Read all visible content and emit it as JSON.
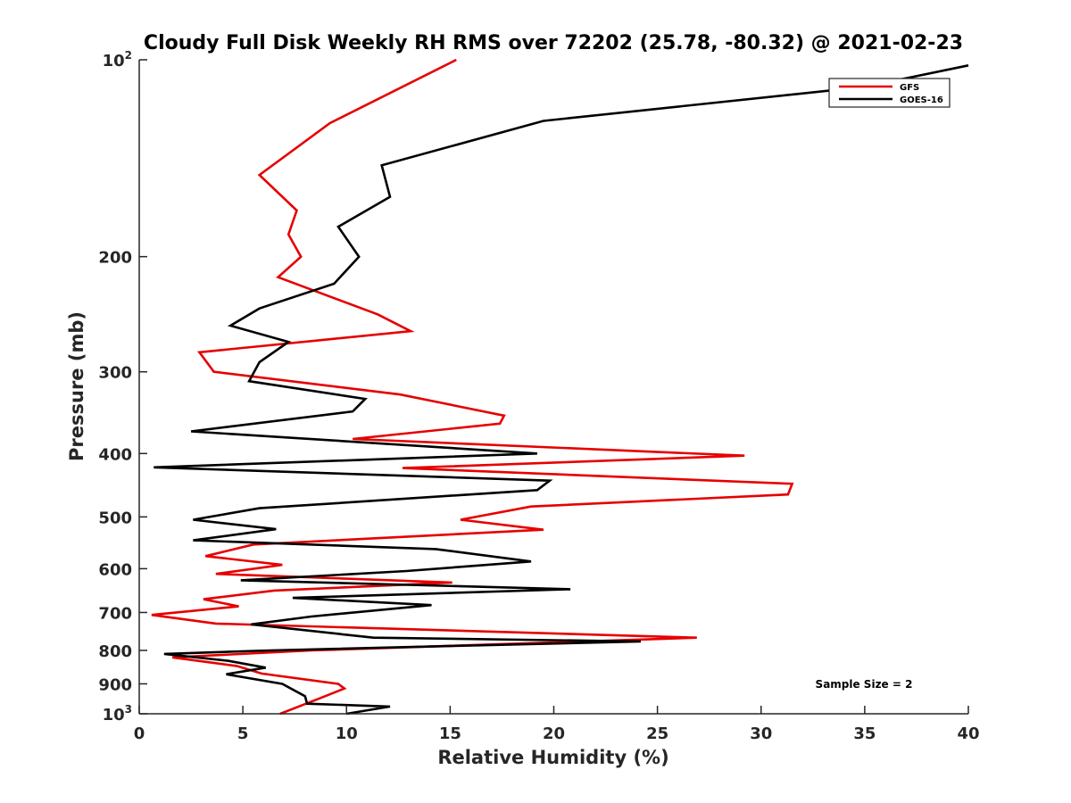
{
  "chart_data": {
    "type": "line",
    "title": "Cloudy Full Disk Weekly RH RMS over 72202 (25.78, -80.32) @ 2021-02-23",
    "xlabel": "Relative Humidity (%)",
    "ylabel": "Pressure (mb)",
    "xlim": [
      0,
      40
    ],
    "ylim": [
      100,
      1000
    ],
    "y_scale": "log",
    "y_reversed": true,
    "x_ticks": [
      0,
      5,
      10,
      15,
      20,
      25,
      30,
      35,
      40
    ],
    "x_tick_labels": [
      "0",
      "5",
      "10",
      "15",
      "20",
      "25",
      "30",
      "35",
      "40"
    ],
    "y_ticks": [
      100,
      200,
      300,
      400,
      500,
      600,
      700,
      800,
      900,
      1000
    ],
    "y_tick_labels": [
      {
        "base": "10",
        "sup": "2"
      },
      {
        "base": "200",
        "sup": ""
      },
      {
        "base": "300",
        "sup": ""
      },
      {
        "base": "400",
        "sup": ""
      },
      {
        "base": "500",
        "sup": ""
      },
      {
        "base": "600",
        "sup": ""
      },
      {
        "base": "700",
        "sup": ""
      },
      {
        "base": "800",
        "sup": ""
      },
      {
        "base": "900",
        "sup": ""
      },
      {
        "base": "10",
        "sup": "3"
      }
    ],
    "grid": false,
    "legend_placement": "top-right",
    "annotation": "Sample Size = 2",
    "series": [
      {
        "name": "GFS",
        "color": "#e60000",
        "points": [
          [
            15.3,
            100
          ],
          [
            9.2,
            125
          ],
          [
            5.8,
            150
          ],
          [
            7.6,
            170
          ],
          [
            7.2,
            185
          ],
          [
            7.8,
            200
          ],
          [
            6.7,
            215
          ],
          [
            11.5,
            245
          ],
          [
            13.1,
            260
          ],
          [
            2.9,
            280
          ],
          [
            3.6,
            300
          ],
          [
            12.6,
            325
          ],
          [
            17.6,
            350
          ],
          [
            17.4,
            360
          ],
          [
            10.3,
            380
          ],
          [
            29.2,
            403
          ],
          [
            12.7,
            421
          ],
          [
            31.5,
            445
          ],
          [
            31.3,
            462
          ],
          [
            18.9,
            482
          ],
          [
            15.5,
            505
          ],
          [
            19.5,
            523
          ],
          [
            5.5,
            551
          ],
          [
            3.2,
            574
          ],
          [
            6.9,
            592
          ],
          [
            3.7,
            611
          ],
          [
            15.1,
            630
          ],
          [
            6.5,
            648
          ],
          [
            3.1,
            668
          ],
          [
            4.8,
            685
          ],
          [
            0.6,
            706
          ],
          [
            3.7,
            728
          ],
          [
            26.9,
            765
          ],
          [
            8.3,
            800
          ],
          [
            1.6,
            820
          ],
          [
            4.7,
            845
          ],
          [
            5.9,
            868
          ],
          [
            9.6,
            900
          ],
          [
            9.9,
            915
          ],
          [
            8.6,
            950
          ],
          [
            6.8,
            1000
          ]
        ]
      },
      {
        "name": "GOES-16",
        "color": "#000000",
        "points": [
          [
            40.0,
            102
          ],
          [
            35.0,
            110
          ],
          [
            19.5,
            124
          ],
          [
            11.7,
            145
          ],
          [
            12.1,
            162
          ],
          [
            9.6,
            180
          ],
          [
            10.6,
            200
          ],
          [
            9.4,
            220
          ],
          [
            5.8,
            240
          ],
          [
            4.4,
            255
          ],
          [
            7.2,
            270
          ],
          [
            5.8,
            290
          ],
          [
            5.3,
            310
          ],
          [
            10.9,
            330
          ],
          [
            10.3,
            345
          ],
          [
            2.5,
            370
          ],
          [
            19.2,
            400
          ],
          [
            0.7,
            420
          ],
          [
            19.8,
            440
          ],
          [
            19.2,
            455
          ],
          [
            5.8,
            485
          ],
          [
            2.6,
            505
          ],
          [
            6.6,
            522
          ],
          [
            2.6,
            543
          ],
          [
            14.3,
            560
          ],
          [
            18.9,
            585
          ],
          [
            12.9,
            605
          ],
          [
            4.9,
            625
          ],
          [
            20.8,
            645
          ],
          [
            7.4,
            665
          ],
          [
            14.1,
            682
          ],
          [
            8.3,
            710
          ],
          [
            5.4,
            730
          ],
          [
            11.3,
            765
          ],
          [
            24.2,
            775
          ],
          [
            6.3,
            800
          ],
          [
            1.2,
            810
          ],
          [
            4.3,
            830
          ],
          [
            6.1,
            850
          ],
          [
            4.2,
            870
          ],
          [
            6.9,
            900
          ],
          [
            8.0,
            940
          ],
          [
            8.1,
            965
          ],
          [
            12.1,
            975
          ],
          [
            10.0,
            1000
          ]
        ]
      }
    ]
  }
}
